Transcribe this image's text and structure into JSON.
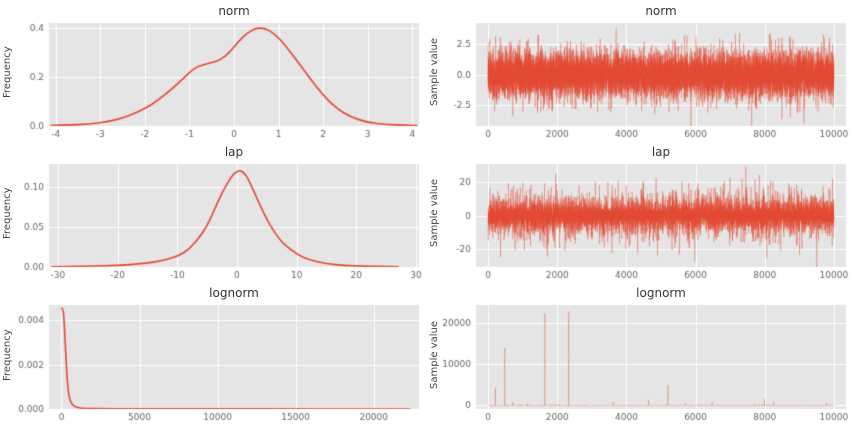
{
  "style": {
    "plot_bg": "#e5e5e5",
    "grid_color": "#ffffff",
    "kde_color": "#e24a33",
    "trace_color": "rgba(226,74,51,0.45)",
    "tick_color": "#666666",
    "title_color": "#333333"
  },
  "chart_data": [
    {
      "id": "norm-density",
      "type": "line",
      "title": "norm",
      "ylabel": "Frequency",
      "xlim": [
        -4.15,
        4.15
      ],
      "ylim": [
        0,
        0.42
      ],
      "xtick_vals": [
        -4,
        -3,
        -2,
        -1,
        0,
        1,
        2,
        3,
        4
      ],
      "xtick_labels": [
        "-4",
        "-3",
        "-2",
        "-1",
        "0",
        "1",
        "2",
        "3",
        "4"
      ],
      "ytick_vals": [
        0,
        0.2,
        0.4
      ],
      "ytick_labels": [
        "0.0",
        "0.2",
        "0.4"
      ],
      "points": [
        [
          -4.1,
          0.002
        ],
        [
          -3.6,
          0.004
        ],
        [
          -3.2,
          0.009
        ],
        [
          -2.8,
          0.018
        ],
        [
          -2.4,
          0.038
        ],
        [
          -2.0,
          0.07
        ],
        [
          -1.7,
          0.105
        ],
        [
          -1.4,
          0.15
        ],
        [
          -1.1,
          0.2
        ],
        [
          -0.9,
          0.235
        ],
        [
          -0.7,
          0.25
        ],
        [
          -0.5,
          0.258
        ],
        [
          -0.3,
          0.27
        ],
        [
          -0.1,
          0.3
        ],
        [
          0.1,
          0.345
        ],
        [
          0.3,
          0.38
        ],
        [
          0.5,
          0.4
        ],
        [
          0.7,
          0.398
        ],
        [
          0.9,
          0.378
        ],
        [
          1.1,
          0.34
        ],
        [
          1.4,
          0.27
        ],
        [
          1.7,
          0.195
        ],
        [
          2.0,
          0.125
        ],
        [
          2.3,
          0.072
        ],
        [
          2.6,
          0.038
        ],
        [
          3.0,
          0.014
        ],
        [
          3.4,
          0.006
        ],
        [
          3.8,
          0.003
        ],
        [
          4.1,
          0.002
        ]
      ]
    },
    {
      "id": "norm-trace",
      "type": "trace",
      "title": "norm",
      "ylabel": "Sample value",
      "xlim": [
        -350,
        10350
      ],
      "ylim": [
        -4.2,
        4.2
      ],
      "xtick_vals": [
        0,
        2000,
        4000,
        6000,
        8000,
        10000
      ],
      "xtick_labels": [
        "0",
        "2000",
        "4000",
        "6000",
        "8000",
        "10000"
      ],
      "ytick_vals": [
        -2.5,
        0,
        2.5
      ],
      "ytick_labels": [
        "-2.5",
        "0.0",
        "2.5"
      ],
      "gen": {
        "dist": "normal",
        "n": 10000,
        "scale": 0.95,
        "seed": 7
      }
    },
    {
      "id": "lap-density",
      "type": "line",
      "title": "lap",
      "ylabel": "Frequency",
      "xlim": [
        -31.5,
        30.5
      ],
      "ylim": [
        0,
        0.129
      ],
      "xtick_vals": [
        -30,
        -20,
        -10,
        0,
        10,
        20,
        30
      ],
      "xtick_labels": [
        "-30",
        "-20",
        "-10",
        "0",
        "10",
        "20",
        "30"
      ],
      "ytick_vals": [
        0,
        0.05,
        0.1
      ],
      "ytick_labels": [
        "0.00",
        "0.05",
        "0.10"
      ],
      "points": [
        [
          -31,
          0.0004
        ],
        [
          -25,
          0.001
        ],
        [
          -20,
          0.002
        ],
        [
          -16,
          0.004
        ],
        [
          -13,
          0.007
        ],
        [
          -10,
          0.013
        ],
        [
          -8,
          0.022
        ],
        [
          -6,
          0.04
        ],
        [
          -5,
          0.052
        ],
        [
          -4,
          0.068
        ],
        [
          -3,
          0.085
        ],
        [
          -2,
          0.1
        ],
        [
          -1,
          0.112
        ],
        [
          -0.5,
          0.117
        ],
        [
          0,
          0.1195
        ],
        [
          0.5,
          0.121
        ],
        [
          1,
          0.119
        ],
        [
          1.5,
          0.115
        ],
        [
          2,
          0.108
        ],
        [
          3,
          0.092
        ],
        [
          4,
          0.075
        ],
        [
          5,
          0.06
        ],
        [
          6,
          0.047
        ],
        [
          7,
          0.036
        ],
        [
          8,
          0.028
        ],
        [
          10,
          0.016
        ],
        [
          12,
          0.009
        ],
        [
          15,
          0.004
        ],
        [
          18,
          0.002
        ],
        [
          21,
          0.001
        ],
        [
          24,
          0.0006
        ],
        [
          27,
          0.0003
        ]
      ]
    },
    {
      "id": "lap-trace",
      "type": "trace",
      "title": "lap",
      "ylabel": "Sample value",
      "xlim": [
        -350,
        10350
      ],
      "ylim": [
        -31,
        31
      ],
      "xtick_vals": [
        0,
        2000,
        4000,
        6000,
        8000,
        10000
      ],
      "xtick_labels": [
        "0",
        "2000",
        "4000",
        "6000",
        "8000",
        "10000"
      ],
      "ytick_vals": [
        -20,
        0,
        20
      ],
      "ytick_labels": [
        "-20",
        "0",
        "20"
      ],
      "gen": {
        "dist": "laplace",
        "n": 10000,
        "scale": 3.5,
        "seed": 13
      }
    },
    {
      "id": "lognorm-density",
      "type": "line",
      "title": "lognorm",
      "ylabel": "Frequency",
      "xlim": [
        -800,
        22900
      ],
      "ylim": [
        0,
        0.00468
      ],
      "xtick_vals": [
        0,
        5000,
        10000,
        15000,
        20000
      ],
      "xtick_labels": [
        "0",
        "5000",
        "10000",
        "15000",
        "20000"
      ],
      "ytick_vals": [
        0,
        0.002,
        0.004
      ],
      "ytick_labels": [
        "0.000",
        "0.002",
        "0.004"
      ],
      "points": [
        [
          0,
          0.00455
        ],
        [
          80,
          0.00452
        ],
        [
          150,
          0.0042
        ],
        [
          220,
          0.0033
        ],
        [
          300,
          0.0021
        ],
        [
          380,
          0.0012
        ],
        [
          470,
          0.0006
        ],
        [
          600,
          0.00028
        ],
        [
          800,
          0.00012
        ],
        [
          1100,
          5e-05
        ],
        [
          1600,
          2e-05
        ],
        [
          2500,
          1e-05
        ],
        [
          5000,
          6e-06
        ],
        [
          10000,
          4e-06
        ],
        [
          15000,
          3e-06
        ],
        [
          20000,
          3e-06
        ],
        [
          22300,
          2e-06
        ]
      ]
    },
    {
      "id": "lognorm-trace",
      "type": "trace",
      "title": "lognorm",
      "ylabel": "Sample value",
      "xlim": [
        -350,
        10350
      ],
      "ylim": [
        -900,
        24500
      ],
      "xtick_vals": [
        0,
        2000,
        4000,
        6000,
        8000,
        10000
      ],
      "xtick_labels": [
        "0",
        "2000",
        "4000",
        "6000",
        "8000",
        "10000"
      ],
      "ytick_vals": [
        0,
        10000,
        20000
      ],
      "ytick_labels": [
        "0",
        "10000",
        "20000"
      ],
      "gen": {
        "dist": "lognormal",
        "n": 10000,
        "sigma": 1.6,
        "seed": 21,
        "spikes": [
          [
            210,
            4300
          ],
          [
            480,
            14000
          ],
          [
            1640,
            22400
          ],
          [
            2330,
            22900
          ],
          [
            3620,
            900
          ],
          [
            4640,
            1300
          ],
          [
            5200,
            4900
          ],
          [
            6480,
            800
          ],
          [
            7990,
            1500
          ],
          [
            8260,
            1000
          ],
          [
            9790,
            700
          ]
        ]
      }
    }
  ]
}
